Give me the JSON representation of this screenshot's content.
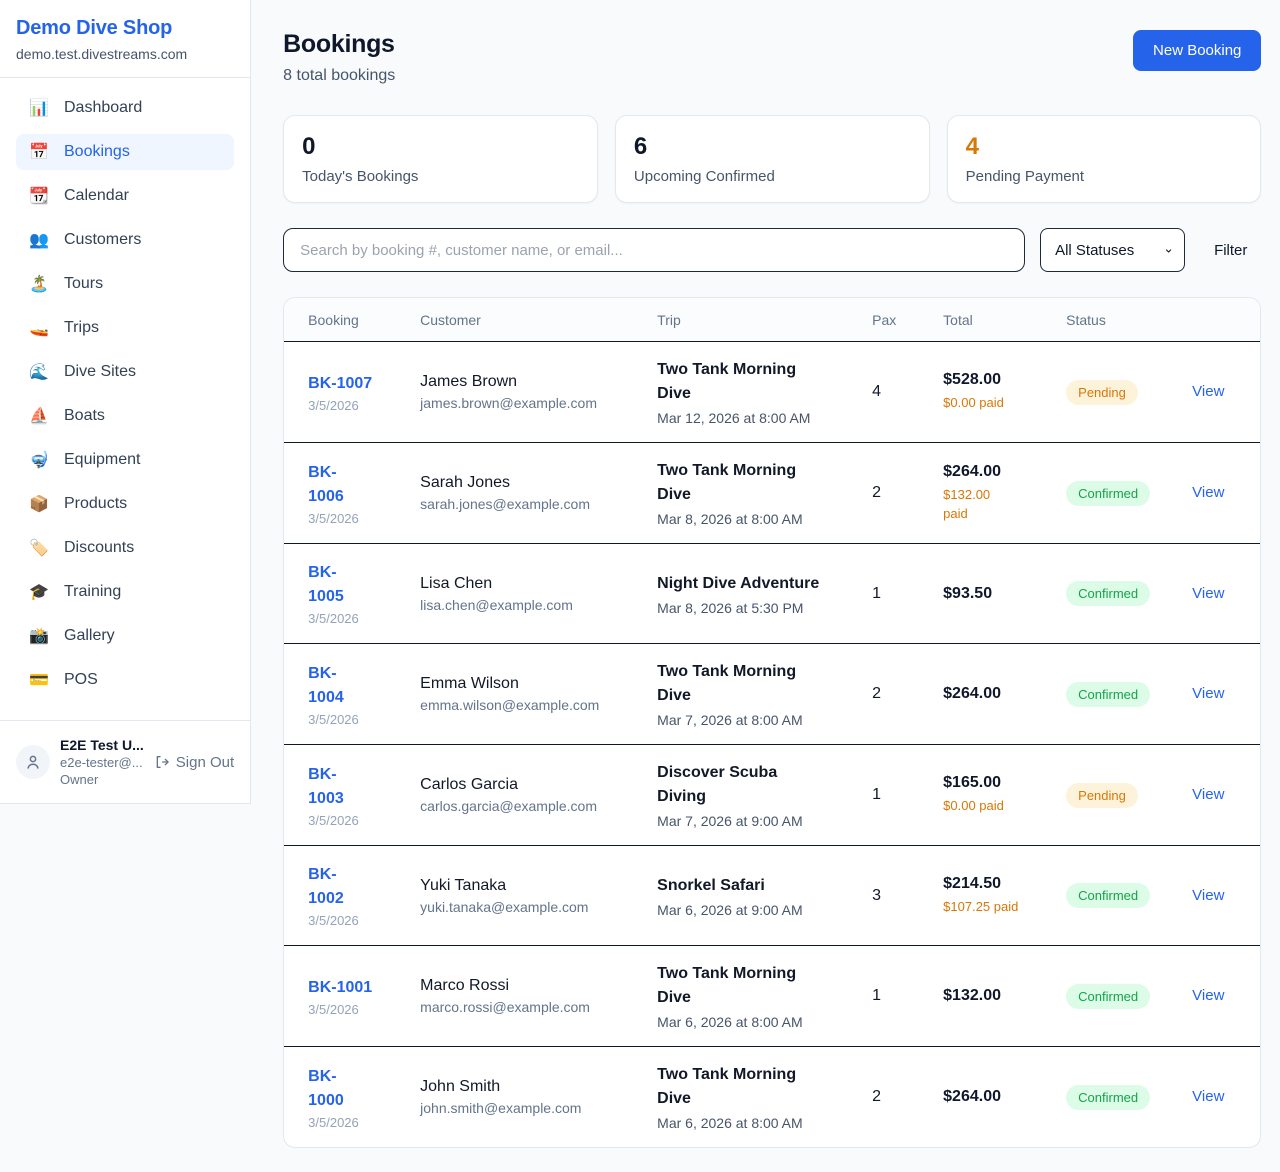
{
  "sidebar": {
    "shop_name": "Demo Dive Shop",
    "domain": "demo.test.divestreams.com",
    "items": [
      {
        "icon": "📊",
        "icon_name": "bar-chart-icon",
        "label": "Dashboard",
        "active": false
      },
      {
        "icon": "📅",
        "icon_name": "calendar-date-icon",
        "label": "Bookings",
        "active": true
      },
      {
        "icon": "📆",
        "icon_name": "tear-off-calendar-icon",
        "label": "Calendar",
        "active": false
      },
      {
        "icon": "👥",
        "icon_name": "people-icon",
        "label": "Customers",
        "active": false
      },
      {
        "icon": "🏝️",
        "icon_name": "island-icon",
        "label": "Tours",
        "active": false
      },
      {
        "icon": "🚤",
        "icon_name": "speedboat-icon",
        "label": "Trips",
        "active": false
      },
      {
        "icon": "🌊",
        "icon_name": "wave-icon",
        "label": "Dive Sites",
        "active": false
      },
      {
        "icon": "⛵",
        "icon_name": "sailboat-icon",
        "label": "Boats",
        "active": false
      },
      {
        "icon": "🤿",
        "icon_name": "diving-mask-icon",
        "label": "Equipment",
        "active": false
      },
      {
        "icon": "📦",
        "icon_name": "package-icon",
        "label": "Products",
        "active": false
      },
      {
        "icon": "🏷️",
        "icon_name": "label-tag-icon",
        "label": "Discounts",
        "active": false
      },
      {
        "icon": "🎓",
        "icon_name": "graduation-cap-icon",
        "label": "Training",
        "active": false
      },
      {
        "icon": "📸",
        "icon_name": "camera-flash-icon",
        "label": "Gallery",
        "active": false
      },
      {
        "icon": "💳",
        "icon_name": "credit-card-icon",
        "label": "POS",
        "active": false
      }
    ],
    "user": {
      "name": "E2E Test U...",
      "email": "e2e-tester@...",
      "role": "Owner",
      "sign_out_label": "Sign Out"
    }
  },
  "header": {
    "title": "Bookings",
    "subtitle": "8 total bookings",
    "new_booking_label": "New Booking"
  },
  "stats": {
    "cards": [
      {
        "value": "0",
        "label": "Today's Bookings",
        "value_color": "#0f172a"
      },
      {
        "value": "6",
        "label": "Upcoming Confirmed",
        "value_color": "#0f172a"
      },
      {
        "value": "4",
        "label": "Pending Payment",
        "value_color": "#d97706"
      }
    ]
  },
  "controls": {
    "search_placeholder": "Search by booking #, customer name, or email...",
    "status_filter_value": "All Statuses",
    "filter_label": "Filter"
  },
  "table": {
    "columns": [
      "Booking",
      "Customer",
      "Trip",
      "Pax",
      "Total",
      "Status"
    ],
    "rows": [
      {
        "id_display": "BK-1007",
        "booked_date": "3/5/2026",
        "customer_name": "James Brown",
        "customer_email": "james.brown@example.com",
        "trip_name": "Two Tank Morning\nDive",
        "trip_datetime": "Mar 12, 2026 at 8:00 AM",
        "pax": "4",
        "total": "$528.00",
        "paid": "$0.00 paid",
        "status": "Pending",
        "view_label": "View"
      },
      {
        "id_display": "BK-\n1006",
        "booked_date": "3/5/2026",
        "customer_name": "Sarah Jones",
        "customer_email": "sarah.jones@example.com",
        "trip_name": "Two Tank Morning\nDive",
        "trip_datetime": "Mar 8, 2026 at 8:00 AM",
        "pax": "2",
        "total": "$264.00",
        "paid": "$132.00\npaid",
        "status": "Confirmed",
        "view_label": "View"
      },
      {
        "id_display": "BK-\n1005",
        "booked_date": "3/5/2026",
        "customer_name": "Lisa Chen",
        "customer_email": "lisa.chen@example.com",
        "trip_name": "Night Dive Adventure",
        "trip_datetime": "Mar 8, 2026 at 5:30 PM",
        "pax": "1",
        "total": "$93.50",
        "paid": "",
        "status": "Confirmed",
        "view_label": "View"
      },
      {
        "id_display": "BK-\n1004",
        "booked_date": "3/5/2026",
        "customer_name": "Emma Wilson",
        "customer_email": "emma.wilson@example.com",
        "trip_name": "Two Tank Morning\nDive",
        "trip_datetime": "Mar 7, 2026 at 8:00 AM",
        "pax": "2",
        "total": "$264.00",
        "paid": "",
        "status": "Confirmed",
        "view_label": "View"
      },
      {
        "id_display": "BK-\n1003",
        "booked_date": "3/5/2026",
        "customer_name": "Carlos Garcia",
        "customer_email": "carlos.garcia@example.com",
        "trip_name": "Discover Scuba\nDiving",
        "trip_datetime": "Mar 7, 2026 at 9:00 AM",
        "pax": "1",
        "total": "$165.00",
        "paid": "$0.00 paid",
        "status": "Pending",
        "view_label": "View"
      },
      {
        "id_display": "BK-\n1002",
        "booked_date": "3/5/2026",
        "customer_name": "Yuki Tanaka",
        "customer_email": "yuki.tanaka@example.com",
        "trip_name": "Snorkel Safari",
        "trip_datetime": "Mar 6, 2026 at 9:00 AM",
        "pax": "3",
        "total": "$214.50",
        "paid": "$107.25 paid",
        "status": "Confirmed",
        "view_label": "View"
      },
      {
        "id_display": "BK-1001",
        "booked_date": "3/5/2026",
        "customer_name": "Marco Rossi",
        "customer_email": "marco.rossi@example.com",
        "trip_name": "Two Tank Morning\nDive",
        "trip_datetime": "Mar 6, 2026 at 8:00 AM",
        "pax": "1",
        "total": "$132.00",
        "paid": "",
        "status": "Confirmed",
        "view_label": "View"
      },
      {
        "id_display": "BK-\n1000",
        "booked_date": "3/5/2026",
        "customer_name": "John Smith",
        "customer_email": "john.smith@example.com",
        "trip_name": "Two Tank Morning\nDive",
        "trip_datetime": "Mar 6, 2026 at 8:00 AM",
        "pax": "2",
        "total": "$264.00",
        "paid": "",
        "status": "Confirmed",
        "view_label": "View"
      }
    ]
  },
  "colors": {
    "accent_blue": "#2563eb",
    "active_nav_bg": "#eff6ff",
    "page_bg": "#f8fafc",
    "pending_text": "#d97706",
    "pending_bg": "#fdf3da",
    "confirmed_text": "#16a34a",
    "confirmed_bg": "#dcfce7",
    "paid_text": "#d97706",
    "divider_dark": "#0f172a",
    "border_light": "#e2e8f0"
  }
}
